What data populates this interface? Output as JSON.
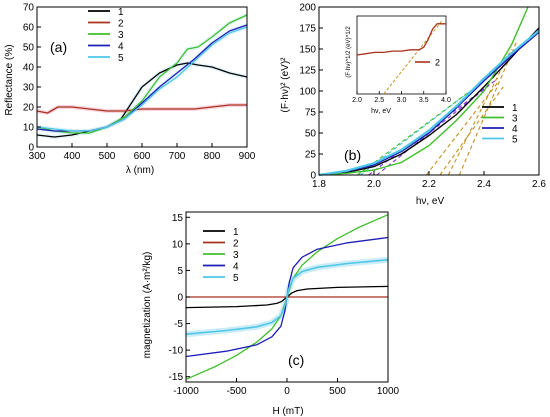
{
  "colors": {
    "s1": "#000000",
    "s2": "#a8321e",
    "s3": "#3fbf2a",
    "s4": "#1d1db8",
    "s5": "#4fc6ea",
    "fitA": "#f0a0b8",
    "fitB": "#c8901e",
    "fitC": "#8a2be2",
    "fitLight": "#bfe8f6"
  },
  "chart_data": [
    {
      "type": "line",
      "panel_label": "(a)",
      "xlabel": "λ (nm)",
      "ylabel": "Reflectance (%)",
      "xlim": [
        300,
        900
      ],
      "ylim": [
        0,
        70
      ],
      "xticks": [
        "300",
        "400",
        "500",
        "600",
        "700",
        "800",
        "900"
      ],
      "yticks": [
        "0",
        "10",
        "20",
        "30",
        "40",
        "50",
        "60",
        "70"
      ],
      "legend": [
        "1",
        "2",
        "3",
        "4",
        "5"
      ],
      "series": [
        {
          "name": "1",
          "x": [
            300,
            350,
            400,
            450,
            500,
            540,
            570,
            600,
            650,
            700,
            730,
            760,
            800,
            850,
            900
          ],
          "y": [
            6,
            5,
            6,
            8,
            10,
            14,
            22,
            30,
            37,
            41,
            42,
            41,
            40,
            37,
            35
          ]
        },
        {
          "name": "2",
          "x": [
            300,
            330,
            360,
            400,
            450,
            500,
            550,
            600,
            650,
            700,
            750,
            800,
            850,
            900
          ],
          "y": [
            18,
            17,
            20,
            20,
            19,
            18,
            18,
            19,
            19,
            19,
            19,
            20,
            21,
            21
          ]
        },
        {
          "name": "3",
          "x": [
            300,
            350,
            400,
            450,
            500,
            550,
            600,
            650,
            700,
            730,
            760,
            800,
            850,
            900
          ],
          "y": [
            10,
            8,
            7,
            7,
            10,
            15,
            23,
            35,
            42,
            49,
            50,
            55,
            62,
            66
          ]
        },
        {
          "name": "4",
          "x": [
            300,
            350,
            400,
            450,
            500,
            550,
            600,
            650,
            700,
            750,
            800,
            850,
            900
          ],
          "y": [
            9,
            8,
            8,
            8,
            10,
            14,
            22,
            30,
            37,
            44,
            52,
            58,
            61
          ]
        },
        {
          "name": "5",
          "x": [
            300,
            350,
            400,
            450,
            500,
            550,
            600,
            650,
            700,
            750,
            800,
            850,
            900
          ],
          "y": [
            10,
            9,
            8,
            8,
            10,
            14,
            21,
            29,
            35,
            43,
            51,
            57,
            60
          ]
        }
      ]
    },
    {
      "type": "line",
      "panel_label": "(b)",
      "xlabel": "hν, eV",
      "ylabel": "(F·hν)² (eV)²",
      "xlim": [
        1.8,
        2.6
      ],
      "ylim": [
        0,
        200
      ],
      "xticks": [
        "1.8",
        "2.0",
        "2.2",
        "2.4",
        "2.6"
      ],
      "yticks": [
        "0",
        "25",
        "50",
        "75",
        "100",
        "125",
        "150",
        "175",
        "200"
      ],
      "legend": [
        "1",
        "3",
        "4",
        "5"
      ],
      "series": [
        {
          "name": "1",
          "x": [
            1.8,
            1.9,
            2.0,
            2.1,
            2.2,
            2.3,
            2.4,
            2.5,
            2.55,
            2.6
          ],
          "y": [
            0,
            3,
            10,
            25,
            47,
            72,
            105,
            140,
            158,
            175
          ]
        },
        {
          "name": "3",
          "x": [
            1.8,
            1.9,
            2.0,
            2.1,
            2.2,
            2.3,
            2.4,
            2.5,
            2.56
          ],
          "y": [
            0,
            2,
            6,
            15,
            35,
            65,
            100,
            155,
            200
          ]
        },
        {
          "name": "4",
          "x": [
            1.8,
            1.9,
            2.0,
            2.1,
            2.2,
            2.3,
            2.4,
            2.5,
            2.6
          ],
          "y": [
            0,
            4,
            12,
            28,
            50,
            80,
            112,
            142,
            170
          ]
        },
        {
          "name": "5",
          "x": [
            1.8,
            1.9,
            2.0,
            2.1,
            2.2,
            2.3,
            2.4,
            2.5,
            2.6
          ],
          "y": [
            0,
            5,
            14,
            30,
            53,
            82,
            115,
            145,
            172
          ]
        }
      ],
      "inset": {
        "xlabel": "hν, eV",
        "ylabel": "(F·hν)^1/2 (eV)^1/2",
        "xlim": [
          2.0,
          4.0
        ],
        "xticks": [
          "2.0",
          "2.5",
          "3.0",
          "3.5",
          "4.0"
        ],
        "legend": [
          "2"
        ],
        "series": [
          {
            "name": "2",
            "x": [
              2.0,
              2.2,
              2.4,
              2.6,
              2.8,
              3.0,
              3.2,
              3.4,
              3.5,
              3.6,
              3.7,
              3.8,
              4.0
            ],
            "y": [
              0.6,
              0.61,
              0.62,
              0.62,
              0.63,
              0.63,
              0.64,
              0.64,
              0.66,
              0.72,
              0.8,
              0.84,
              0.84
            ]
          }
        ]
      }
    },
    {
      "type": "line",
      "panel_label": "(c)",
      "xlabel": "H (mT)",
      "ylabel": "magnetization (A·m²/kg)",
      "xlim": [
        -1000,
        1000
      ],
      "ylim": [
        -16,
        16
      ],
      "xticks": [
        "-1000",
        "-500",
        "0",
        "500",
        "1000"
      ],
      "yticks": [
        "-15",
        "-10",
        "-5",
        "0",
        "5",
        "10",
        "15"
      ],
      "legend": [
        "1",
        "2",
        "3",
        "4",
        "5"
      ],
      "series": [
        {
          "name": "1",
          "x": [
            -1000,
            -500,
            -200,
            -100,
            -50,
            0,
            50,
            100,
            200,
            500,
            1000
          ],
          "y": [
            -2,
            -1.8,
            -1.5,
            -1.2,
            -0.8,
            0,
            0.8,
            1.2,
            1.5,
            1.8,
            2
          ]
        },
        {
          "name": "2",
          "x": [
            -1000,
            0,
            1000
          ],
          "y": [
            0,
            0,
            0
          ]
        },
        {
          "name": "3",
          "x": [
            -1000,
            -700,
            -500,
            -300,
            -150,
            -60,
            0,
            60,
            150,
            300,
            500,
            700,
            1000
          ],
          "y": [
            -15.5,
            -13,
            -11,
            -8.5,
            -6,
            -3.5,
            0,
            3.5,
            6,
            8.5,
            11,
            13,
            15.5
          ]
        },
        {
          "name": "4",
          "x": [
            -1000,
            -600,
            -300,
            -150,
            -60,
            -20,
            0,
            20,
            60,
            150,
            300,
            600,
            1000
          ],
          "y": [
            -11.2,
            -10.2,
            -9,
            -7.5,
            -5.5,
            -2.5,
            0,
            2.5,
            5.5,
            7.5,
            9,
            10.2,
            11.2
          ]
        },
        {
          "name": "5",
          "x": [
            -1000,
            -600,
            -300,
            -150,
            -60,
            -20,
            0,
            20,
            60,
            150,
            300,
            600,
            1000
          ],
          "y": [
            -7,
            -6.3,
            -5.6,
            -4.8,
            -3.5,
            -1.6,
            0,
            1.6,
            3.5,
            4.8,
            5.6,
            6.3,
            7
          ]
        }
      ]
    }
  ]
}
